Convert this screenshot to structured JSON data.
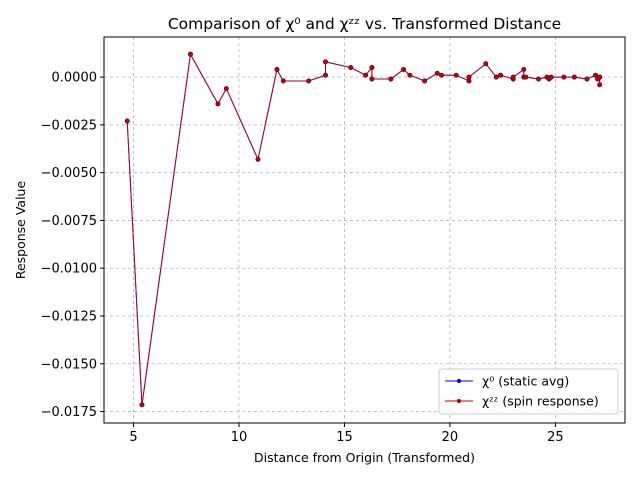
{
  "chart_data": {
    "type": "line",
    "title": "Comparison of χ⁰ and χᶻᶻ vs. Transformed Distance",
    "xlabel": "Distance from Origin (Transformed)",
    "ylabel": "Response Value",
    "xlim": [
      3.6,
      28.3
    ],
    "ylim": [
      -0.0181,
      0.0021
    ],
    "xticks": [
      5,
      10,
      15,
      20,
      25
    ],
    "yticks": [
      0.0,
      -0.0025,
      -0.005,
      -0.0075,
      -0.01,
      -0.0125,
      -0.015,
      -0.0175
    ],
    "xtick_labels": [
      "5",
      "10",
      "15",
      "20",
      "25"
    ],
    "ytick_labels": [
      "0.0000",
      "−0.0025",
      "−0.0050",
      "−0.0075",
      "−0.0100",
      "−0.0125",
      "−0.0150",
      "−0.0175"
    ],
    "grid": true,
    "legend_position": "lower-right",
    "series": [
      {
        "name": "χ⁰ (static avg)",
        "color": "#0000ff",
        "x": [
          4.7,
          5.4,
          7.7,
          9.0,
          9.4,
          10.9,
          11.8,
          12.1,
          13.3,
          14.1,
          14.1,
          15.3,
          16.0,
          16.3,
          16.3,
          17.2,
          17.8,
          18.1,
          18.8,
          19.4,
          19.6,
          20.3,
          20.9,
          20.9,
          21.7,
          22.2,
          22.4,
          22.4,
          23.0,
          23.0,
          23.5,
          23.5,
          23.6,
          24.2,
          24.6,
          24.7,
          24.8,
          25.4,
          25.9,
          26.5,
          26.9,
          27.0,
          27.1,
          27.1,
          27.1
        ],
        "y": [
          -0.0023,
          -0.01715,
          0.0012,
          -0.0014,
          -0.0006,
          -0.0043,
          0.0004,
          -0.0002,
          -0.0002,
          0.0001,
          0.0008,
          0.0005,
          0.0001,
          0.0005,
          -0.0001,
          -0.0001,
          0.0004,
          0.0001,
          -0.0002,
          0.0002,
          0.0001,
          0.0001,
          -0.0002,
          0.0,
          0.0007,
          0.0,
          0.0001,
          0.0001,
          -0.0001,
          0.0,
          0.0004,
          0.0,
          0.0,
          -0.0001,
          0.0,
          -0.0001,
          0.0,
          0.0,
          0.0,
          -0.0001,
          0.0001,
          -0.0001,
          0.0,
          0.0,
          -0.0004
        ]
      },
      {
        "name": "χᶻᶻ (spin response)",
        "color": "#cc0000",
        "x": [
          4.7,
          5.4,
          7.7,
          9.0,
          9.4,
          10.9,
          11.8,
          12.1,
          13.3,
          14.1,
          14.1,
          15.3,
          16.0,
          16.3,
          16.3,
          17.2,
          17.8,
          18.1,
          18.8,
          19.4,
          19.6,
          20.3,
          20.9,
          20.9,
          21.7,
          22.2,
          22.4,
          22.4,
          23.0,
          23.0,
          23.5,
          23.5,
          23.6,
          24.2,
          24.6,
          24.7,
          24.8,
          25.4,
          25.9,
          26.5,
          26.9,
          27.0,
          27.1,
          27.1,
          27.1
        ],
        "y": [
          -0.0023,
          -0.01715,
          0.0012,
          -0.0014,
          -0.0006,
          -0.0043,
          0.0004,
          -0.0002,
          -0.0002,
          0.0001,
          0.0008,
          0.0005,
          0.0001,
          0.0005,
          -0.0001,
          -0.0001,
          0.0004,
          0.0001,
          -0.0002,
          0.0002,
          0.0001,
          0.0001,
          -0.0002,
          0.0,
          0.0007,
          0.0,
          0.0001,
          0.0001,
          -0.0001,
          0.0,
          0.0004,
          0.0,
          0.0,
          -0.0001,
          0.0,
          -0.0001,
          0.0,
          0.0,
          0.0,
          -0.0001,
          0.0001,
          -0.0001,
          0.0,
          0.0,
          -0.0004
        ]
      }
    ]
  }
}
